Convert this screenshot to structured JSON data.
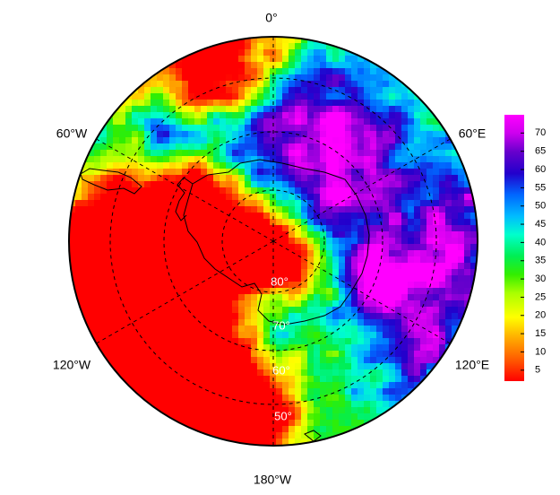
{
  "map": {
    "projection": "polar-stereographic-south",
    "lon_labels": [
      {
        "name": "lon-label-0",
        "text": "0°"
      },
      {
        "name": "lon-label-60e",
        "text": "60°E"
      },
      {
        "name": "lon-label-120e",
        "text": "120°E"
      },
      {
        "name": "lon-label-180w",
        "text": "180°W"
      },
      {
        "name": "lon-label-120w",
        "text": "120°W"
      },
      {
        "name": "lon-label-60w",
        "text": "60°W"
      }
    ],
    "lat_labels": [
      {
        "name": "lat-label-80",
        "text": "80°"
      },
      {
        "name": "lat-label-70",
        "text": "70°"
      },
      {
        "name": "lat-label-60",
        "text": "60°"
      },
      {
        "name": "lat-label-50",
        "text": "50°"
      }
    ],
    "colorbar": {
      "ticks": [
        "5",
        "10",
        "15",
        "20",
        "25",
        "30",
        "35",
        "40",
        "45",
        "50",
        "55",
        "60",
        "65",
        "70"
      ],
      "range": [
        2,
        75
      ],
      "colors": [
        "#ff0000",
        "#ff5500",
        "#ffaa00",
        "#ffff00",
        "#aaff00",
        "#33ee00",
        "#00ee55",
        "#00ffcc",
        "#00bbff",
        "#0066ff",
        "#3300cc",
        "#6600cc",
        "#cc00ee",
        "#ff00ff"
      ]
    }
  }
}
